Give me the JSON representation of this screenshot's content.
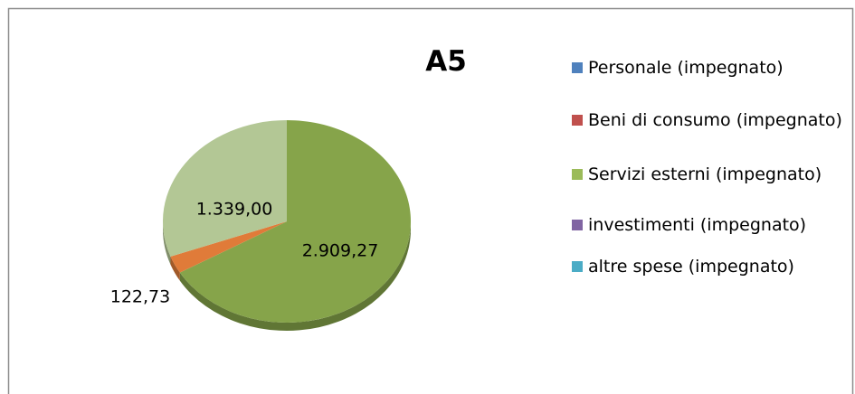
{
  "chart_data": {
    "type": "pie",
    "title": "A5",
    "values": [
      2909.27,
      122.73,
      1339.0
    ],
    "value_labels": [
      "2.909,27",
      "122,73",
      "1.339,00"
    ],
    "colors": [
      "#86a44a",
      "#e07b39",
      "#b3c795"
    ],
    "legend": [
      {
        "name": "Personale (impegnato)",
        "color": "#4f81bd"
      },
      {
        "name": "Beni di consumo (impegnato)",
        "color": "#c0504d"
      },
      {
        "name": "Servizi esterni (impegnato)",
        "color": "#9bbb59"
      },
      {
        "name": "investimenti (impegnato)",
        "color": "#8064a2"
      },
      {
        "name": "altre spese (impegnato)",
        "color": "#4bacc6"
      }
    ]
  }
}
